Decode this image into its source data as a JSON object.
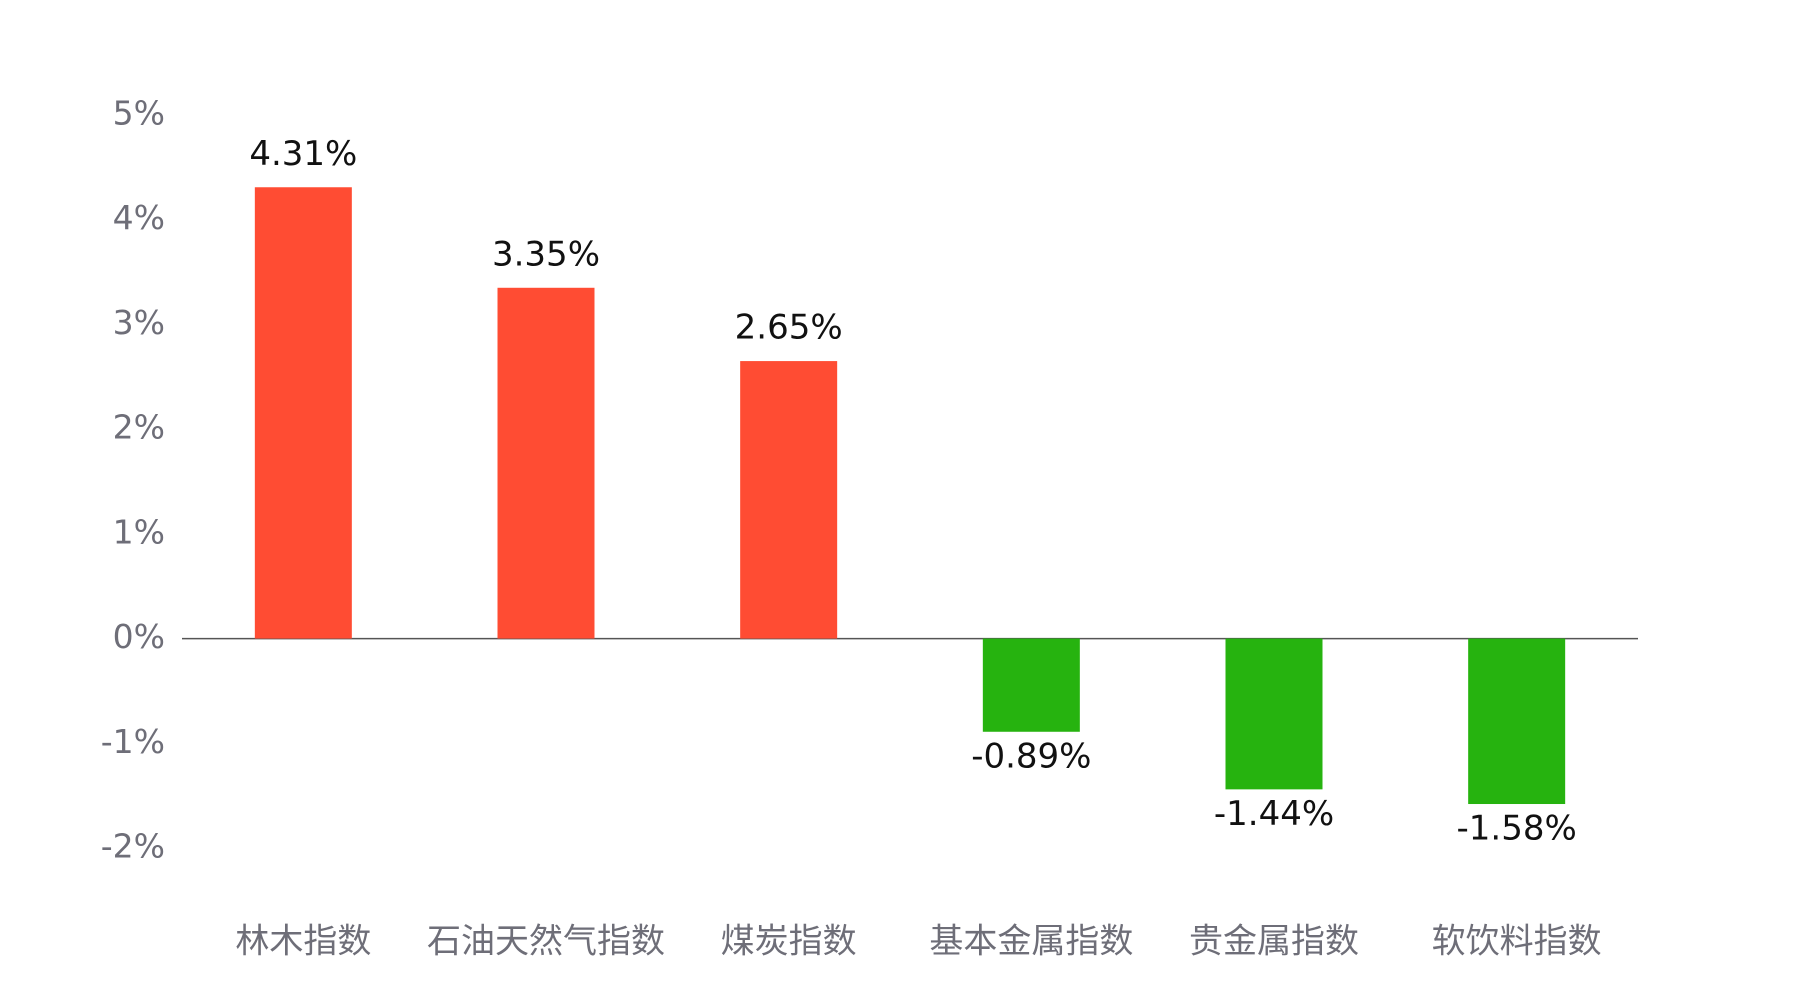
{
  "chart_data": {
    "type": "bar",
    "categories": [
      "林木指数",
      "石油天然气指数",
      "煤炭指数",
      "基本金属指数",
      "贵金属指数",
      "软饮料指数"
    ],
    "values": [
      4.31,
      3.35,
      2.65,
      -0.89,
      -1.44,
      -1.58
    ],
    "value_labels": [
      "4.31%",
      "3.35%",
      "2.65%",
      "-0.89%",
      "-1.44%",
      "-1.58%"
    ],
    "positive_color": "#ff4c33",
    "negative_color": "#26b30f",
    "ylim": [
      -2,
      5
    ],
    "yticks": [
      {
        "value": -2,
        "label": "-2%"
      },
      {
        "value": -1,
        "label": "-1%"
      },
      {
        "value": 0,
        "label": "0%"
      },
      {
        "value": 1,
        "label": "1%"
      },
      {
        "value": 2,
        "label": "2%"
      },
      {
        "value": 3,
        "label": "3%"
      },
      {
        "value": 4,
        "label": "4%"
      },
      {
        "value": 5,
        "label": "5%"
      }
    ],
    "grid": false
  }
}
